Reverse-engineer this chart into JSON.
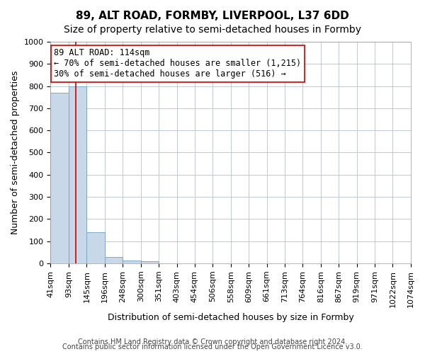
{
  "title": "89, ALT ROAD, FORMBY, LIVERPOOL, L37 6DD",
  "subtitle": "Size of property relative to semi-detached houses in Formby",
  "xlabel": "Distribution of semi-detached houses by size in Formby",
  "ylabel": "Number of semi-detached properties",
  "footnote1": "Contains HM Land Registry data © Crown copyright and database right 2024.",
  "footnote2": "Contains public sector information licensed under the Open Government Licence v3.0.",
  "annotation_title": "89 ALT ROAD: 114sqm",
  "annotation_line1": "← 70% of semi-detached houses are smaller (1,215)",
  "annotation_line2": "30% of semi-detached houses are larger (516) →",
  "property_size": 114,
  "property_line_x": 114,
  "bin_edges": [
    41,
    93,
    145,
    196,
    248,
    300,
    351,
    403,
    454,
    506,
    558,
    609,
    661,
    713,
    764,
    816,
    867,
    919,
    971,
    1022,
    1074
  ],
  "bin_labels": [
    "41sqm",
    "93sqm",
    "145sqm",
    "196sqm",
    "248sqm",
    "300sqm",
    "351sqm",
    "403sqm",
    "454sqm",
    "506sqm",
    "558sqm",
    "609sqm",
    "661sqm",
    "713sqm",
    "764sqm",
    "816sqm",
    "867sqm",
    "919sqm",
    "971sqm",
    "1022sqm",
    "1074sqm"
  ],
  "bar_heights": [
    770,
    800,
    140,
    30,
    12,
    8,
    0,
    0,
    0,
    0,
    0,
    0,
    0,
    0,
    0,
    0,
    0,
    0,
    0,
    0
  ],
  "bar_color": "#c8d8e8",
  "bar_edge_color": "#7aaac8",
  "grid_color": "#c0c8d0",
  "background_color": "#ffffff",
  "ylim": [
    0,
    1000
  ],
  "yticks": [
    0,
    100,
    200,
    300,
    400,
    500,
    600,
    700,
    800,
    900,
    1000
  ],
  "vline_color": "#cc0000",
  "annotation_box_color": "#ffffff",
  "annotation_box_edge": "#cc0000",
  "title_fontsize": 11,
  "subtitle_fontsize": 10,
  "axis_label_fontsize": 9,
  "tick_fontsize": 8,
  "annotation_fontsize": 8.5,
  "footnote_fontsize": 7
}
